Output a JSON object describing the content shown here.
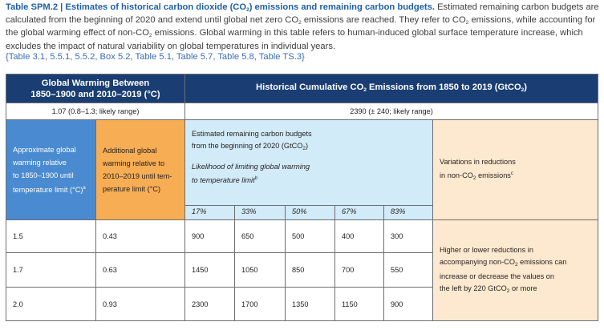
{
  "caption": {
    "table_id": "Table SPM.2 | Estimates of historical carbon dioxide (CO",
    "table_id_sub": "2",
    "table_id_end": ") emissions and remaining carbon budgets.",
    "text1": " Estimated remaining carbon budgets are calculated from the beginning of 2020 and extend until global net zero CO",
    "sub1": "2",
    "text2": " emissions are reached. They refer to CO",
    "sub2": "2",
    "text3": " emissions, while accounting for the global warming effect of non-CO",
    "sub3": "2",
    "text4": " emissions. Global warming in this table refers to human-induced global surface temperature increase, which excludes the impact of natural variability on global temperatures in individual years.",
    "refs": "{Table 3.1, 5.5.1, 5.5.2, Box 5.2, Table 5.1, Table 5.7, Table 5.8, Table TS.3}"
  },
  "header": {
    "left_line1": "Global Warming Between",
    "left_line2": "1850–1900 and 2010–2019 (°C)",
    "right_pre": "Historical Cumulative CO",
    "right_sub": "2",
    "right_mid": " Emissions from 1850 to 2019 (GtCO",
    "right_sub2": "2",
    "right_end": ")",
    "warming_value": "1.07 (0.8–1.3; likely range)",
    "emissions_value": "2390 (± 240; likely range)"
  },
  "columns": {
    "approx_line1": "Approximate global",
    "approx_line2": "warming relative",
    "approx_line3": "to 1850–1900 until",
    "approx_line4": "temperature limit (°C)",
    "approx_sup": "a",
    "add_line1": "Additional global",
    "add_line2": "warming relative to",
    "add_line3": "2010–2019 until tem-",
    "add_line4": "perature limit (°C)",
    "budget_line1": "Estimated remaining carbon budgets",
    "budget_line2_pre": "from the beginning of 2020 (GtCO",
    "budget_line2_sub": "2",
    "budget_line2_end": ")",
    "likelihood_line1": "Likelihood of limiting global warming",
    "likelihood_line2": "to temperature limit",
    "likelihood_sup": "b",
    "variations_line1": "Variations in reductions",
    "variations_line2_pre": "in non-CO",
    "variations_line2_sub": "2",
    "variations_line2_end": " emissions",
    "variations_sup": "c",
    "percentiles": [
      "17%",
      "33%",
      "50%",
      "67%",
      "83%"
    ]
  },
  "rows": [
    {
      "approx": "1.5",
      "additional": "0.43",
      "budgets": [
        "900",
        "650",
        "500",
        "400",
        "300"
      ]
    },
    {
      "approx": "1.7",
      "additional": "0.63",
      "budgets": [
        "1450",
        "1050",
        "850",
        "700",
        "550"
      ]
    },
    {
      "approx": "2.0",
      "additional": "0.93",
      "budgets": [
        "2300",
        "1700",
        "1350",
        "1150",
        "900"
      ]
    }
  ],
  "note": {
    "line1": "Higher or lower reductions in",
    "line2_pre": "accompanying non-CO",
    "line2_sub": "2",
    "line2_end": " emissions can",
    "line3": "increase or decrease the values on",
    "line4_pre": "the left by 220 GtCO",
    "line4_sub": "2",
    "line4_end": " or more"
  },
  "colors": {
    "title": "#1f5fa8",
    "header_bg": "#1a3e73",
    "approx_bg": "#4a8ad0",
    "additional_bg": "#f6ad53",
    "budget_bg": "#d2ebf8",
    "variation_bg": "#fde9cf"
  }
}
